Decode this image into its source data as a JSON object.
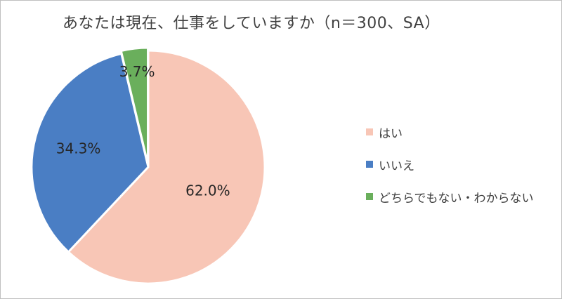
{
  "chart_data": {
    "type": "pie",
    "title": "あなたは現在、仕事をしていますか（n＝300、SA）",
    "slices": [
      {
        "label": "はい",
        "value": 62.0,
        "display": "62.0%",
        "color": "#f8c6b6"
      },
      {
        "label": "いいえ",
        "value": 34.3,
        "display": "34.3%",
        "color": "#4a7ec4"
      },
      {
        "label": "どちらでもない・わからない",
        "value": 3.7,
        "display": "3.7%",
        "color": "#6aaf5c"
      }
    ],
    "start_angle_deg": 0,
    "direction": "clockwise",
    "legend_position": "right"
  }
}
